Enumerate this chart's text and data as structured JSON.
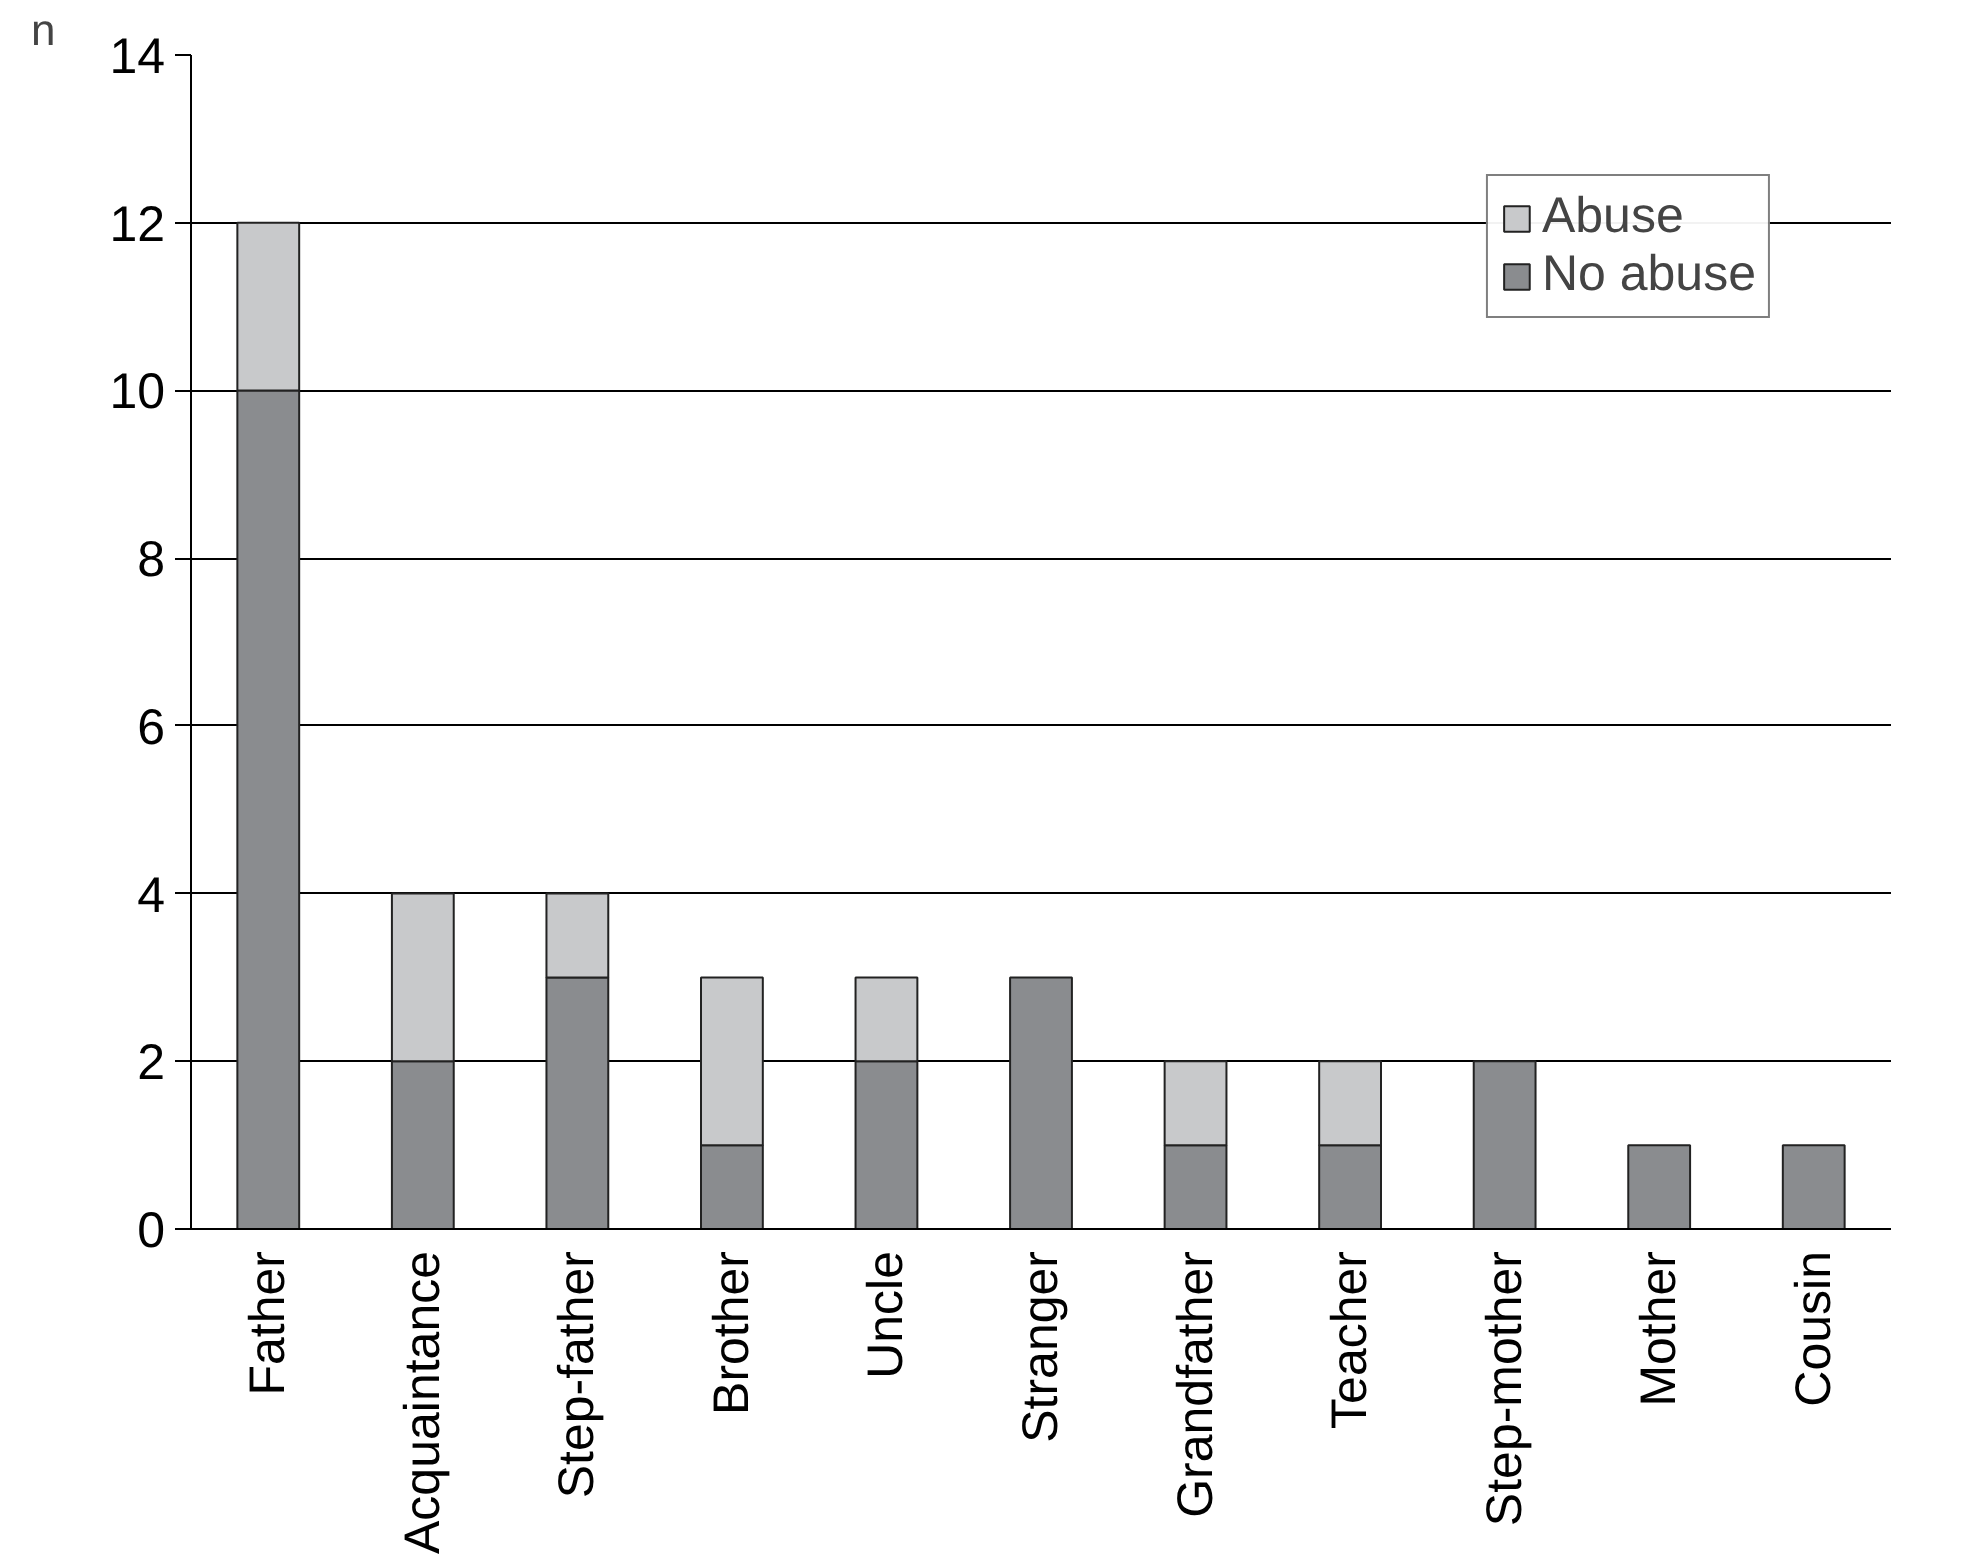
{
  "chart_data": {
    "type": "bar",
    "stacked": true,
    "ylabel": "n",
    "categories": [
      "Father",
      "Acquaintance",
      "Step-father",
      "Brother",
      "Uncle",
      "Stranger",
      "Grandfather",
      "Teacher",
      "Step-mother",
      "Mother",
      "Cousin"
    ],
    "series": [
      {
        "name": "No abuse",
        "color": "#8a8c8f",
        "values": [
          10,
          2,
          3,
          1,
          2,
          3,
          1,
          1,
          2,
          1,
          1
        ]
      },
      {
        "name": "Abuse",
        "color": "#c8c9cb",
        "values": [
          2,
          2,
          1,
          2,
          1,
          0,
          1,
          1,
          0,
          0,
          0
        ]
      }
    ],
    "ylim": [
      0,
      14
    ],
    "yticks": [
      0,
      2,
      4,
      6,
      8,
      10,
      12,
      14
    ],
    "grid": "y",
    "legend": "top right"
  }
}
